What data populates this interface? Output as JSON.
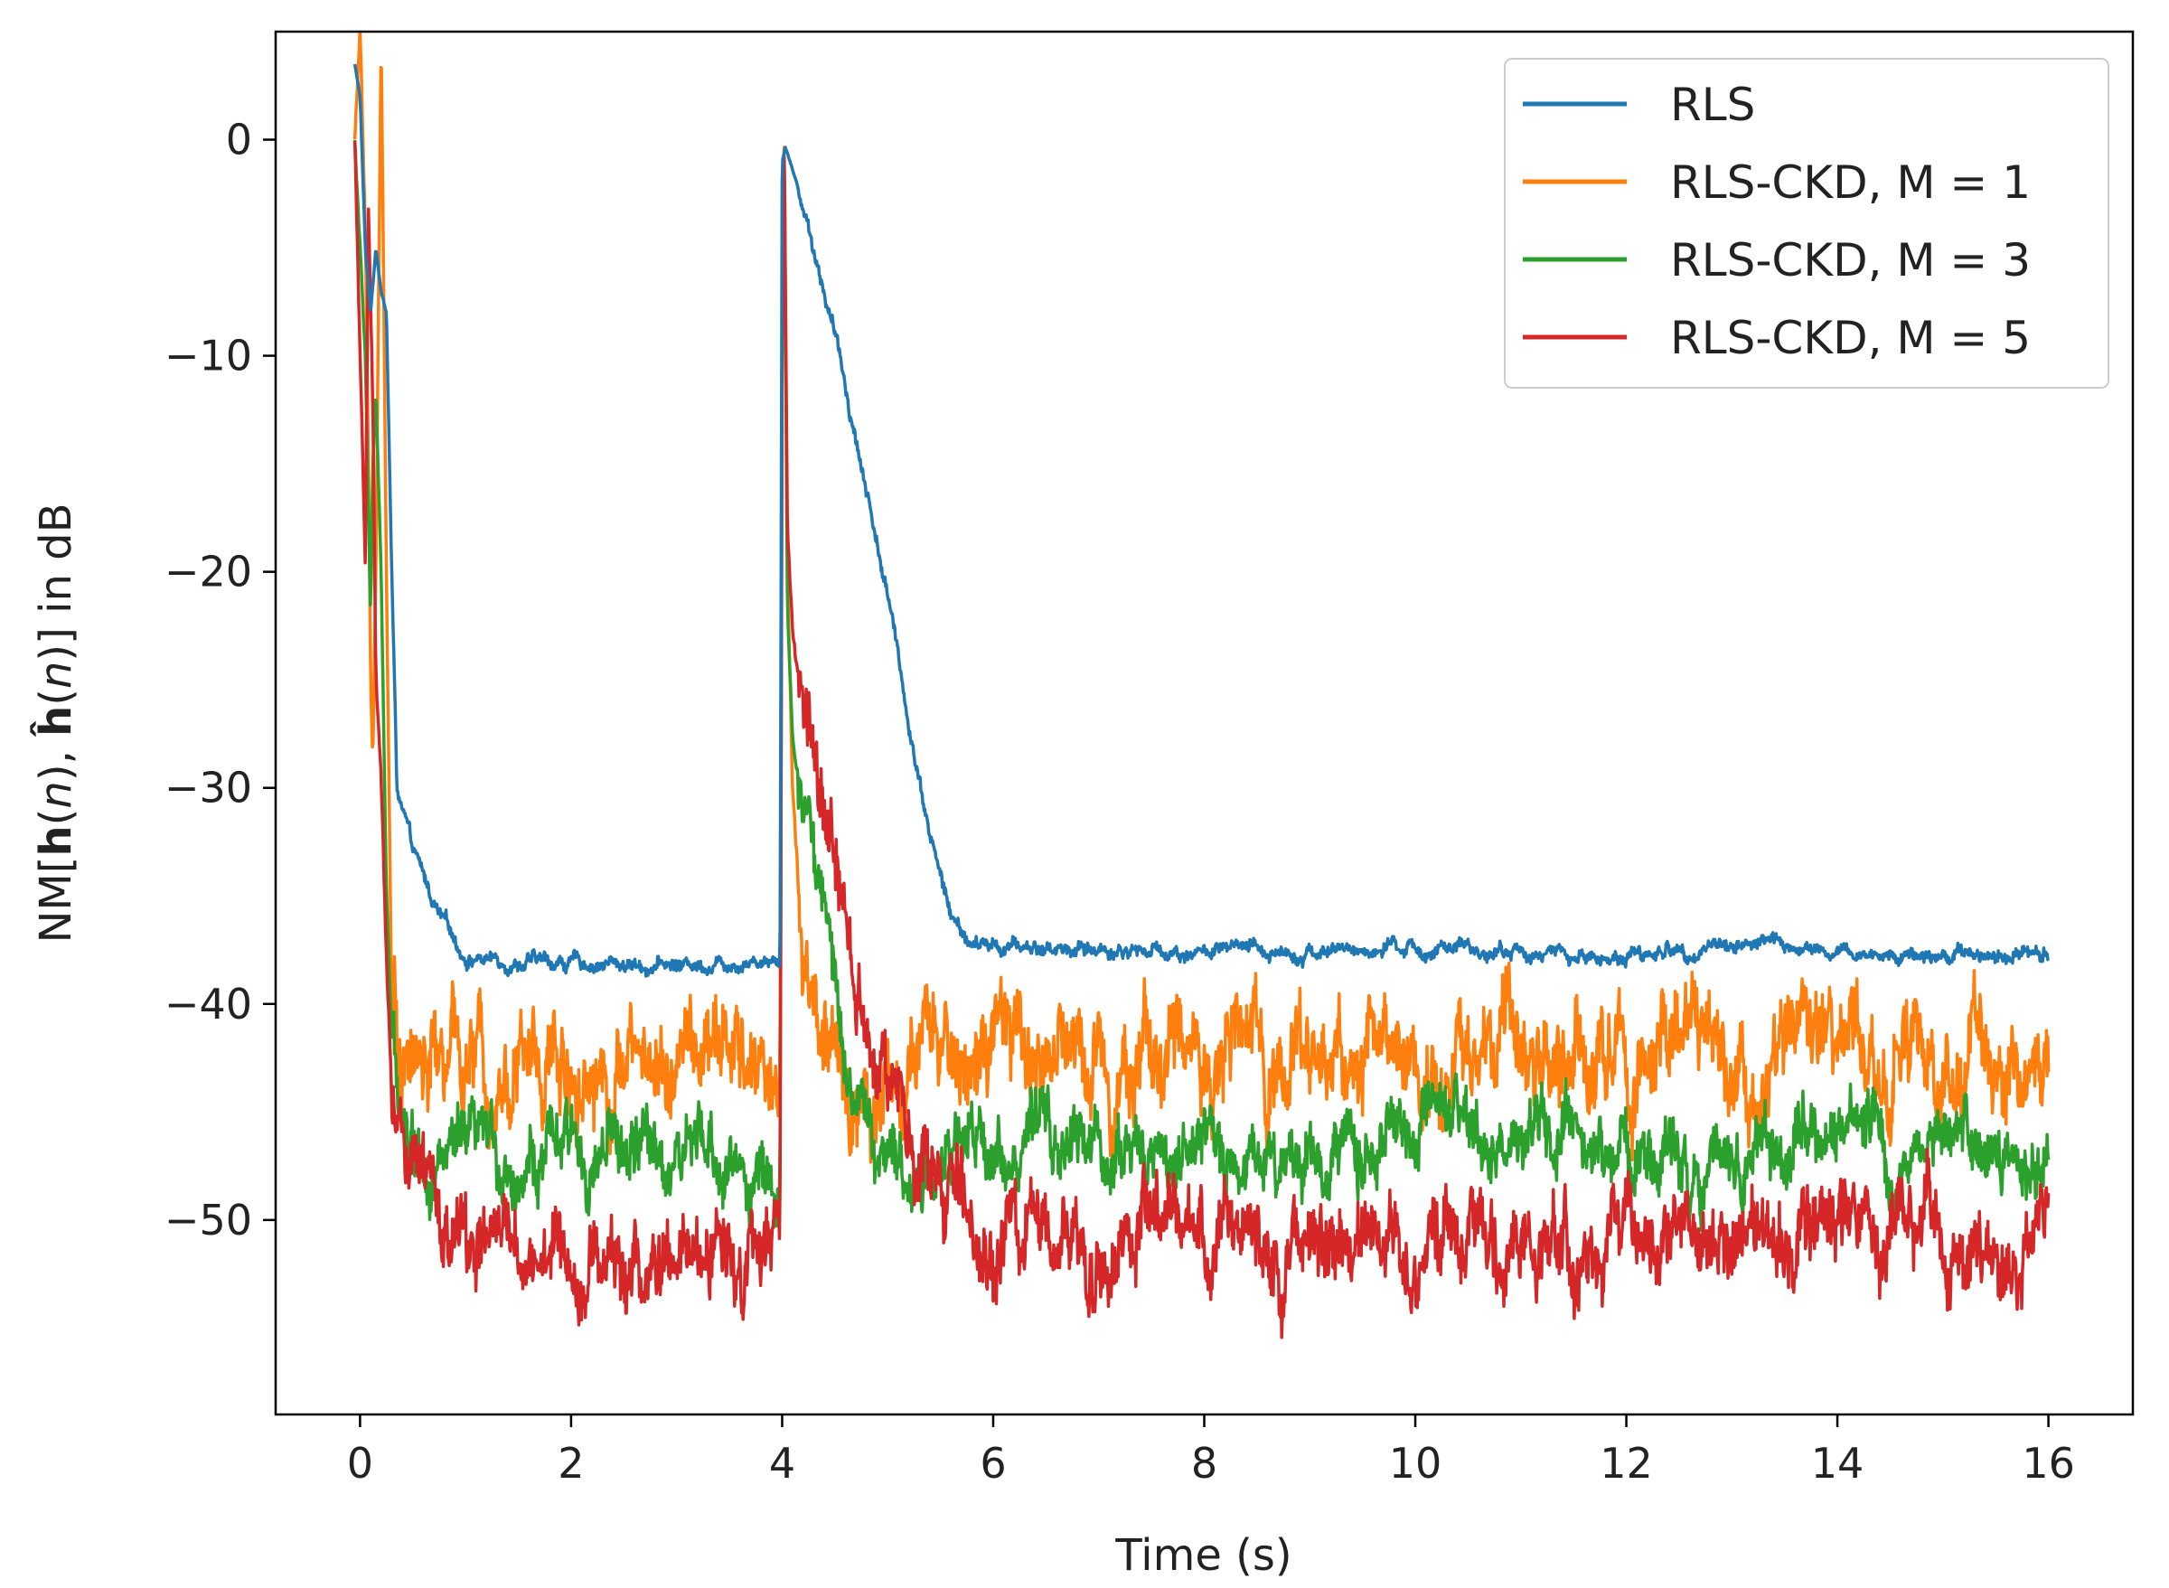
{
  "chart_data": {
    "type": "line",
    "title": "",
    "xlabel": "Time (s)",
    "ylabel": "NM[h(n), ĥ(n)] in dB",
    "xlim": [
      -0.8,
      16.8
    ],
    "ylim": [
      -59,
      5
    ],
    "xticks": [
      0,
      2,
      4,
      6,
      8,
      10,
      12,
      14,
      16
    ],
    "yticks": [
      0,
      -10,
      -20,
      -30,
      -40,
      -50
    ],
    "xtick_labels": [
      "0",
      "2",
      "4",
      "6",
      "8",
      "10",
      "12",
      "14",
      "16"
    ],
    "ytick_labels": [
      "0",
      "−10",
      "−20",
      "−30",
      "−40",
      "−50"
    ],
    "grid": false,
    "legend_position": "top-right",
    "series": [
      {
        "name": "RLS",
        "color": "#1f77b4",
        "noise": 0.35,
        "points": [
          [
            -0.05,
            3.5
          ],
          [
            0.0,
            2
          ],
          [
            0.05,
            -5
          ],
          [
            0.1,
            -8
          ],
          [
            0.15,
            -5
          ],
          [
            0.2,
            -7
          ],
          [
            0.25,
            -8
          ],
          [
            0.3,
            -20
          ],
          [
            0.35,
            -30
          ],
          [
            0.5,
            -33
          ],
          [
            0.75,
            -36
          ],
          [
            1.0,
            -37.8
          ],
          [
            1.5,
            -38
          ],
          [
            2.0,
            -38.1
          ],
          [
            3.0,
            -38.2
          ],
          [
            3.5,
            -38
          ],
          [
            3.98,
            -37.8
          ],
          [
            4.0,
            -1
          ],
          [
            4.03,
            -0.3
          ],
          [
            4.2,
            -3
          ],
          [
            4.5,
            -9
          ],
          [
            5.0,
            -21
          ],
          [
            5.2,
            -27
          ],
          [
            5.4,
            -32
          ],
          [
            5.6,
            -36
          ],
          [
            5.8,
            -37.3
          ],
          [
            6.2,
            -37.4
          ],
          [
            8.0,
            -37.6
          ],
          [
            10.0,
            -37.5
          ],
          [
            11.0,
            -37.6
          ],
          [
            11.7,
            -37.9
          ],
          [
            13.3,
            -37.1
          ],
          [
            14.0,
            -37.8
          ],
          [
            16.0,
            -37.5
          ]
        ]
      },
      {
        "name": "RLS-CKD, M = 1",
        "color": "#ff7f0e",
        "noise": 2.2,
        "points": [
          [
            -0.05,
            0
          ],
          [
            0.0,
            5
          ],
          [
            0.05,
            -4
          ],
          [
            0.08,
            -15
          ],
          [
            0.1,
            -25
          ],
          [
            0.12,
            -29
          ],
          [
            0.15,
            -20
          ],
          [
            0.2,
            5
          ],
          [
            0.25,
            -20
          ],
          [
            0.3,
            -40
          ],
          [
            0.4,
            -42
          ],
          [
            0.7,
            -43
          ],
          [
            1.5,
            -42.5
          ],
          [
            3.0,
            -42.5
          ],
          [
            3.98,
            -43
          ],
          [
            4.0,
            -5
          ],
          [
            4.02,
            0
          ],
          [
            4.05,
            -20
          ],
          [
            4.1,
            -30
          ],
          [
            4.2,
            -38
          ],
          [
            4.5,
            -44
          ],
          [
            4.8,
            -44
          ],
          [
            5.5,
            -42.5
          ],
          [
            8.0,
            -42
          ],
          [
            10.0,
            -42.5
          ],
          [
            12.0,
            -42.5
          ],
          [
            14.0,
            -42.5
          ],
          [
            16.0,
            -42.5
          ]
        ]
      },
      {
        "name": "RLS-CKD, M = 3",
        "color": "#2ca02c",
        "noise": 1.6,
        "points": [
          [
            -0.05,
            0
          ],
          [
            0.0,
            -5
          ],
          [
            0.05,
            -10
          ],
          [
            0.1,
            -22
          ],
          [
            0.12,
            -15
          ],
          [
            0.15,
            -12
          ],
          [
            0.2,
            -20
          ],
          [
            0.25,
            -35
          ],
          [
            0.3,
            -42
          ],
          [
            0.5,
            -46
          ],
          [
            1.0,
            -47.5
          ],
          [
            2.0,
            -47
          ],
          [
            3.0,
            -47
          ],
          [
            3.98,
            -48
          ],
          [
            4.0,
            -10
          ],
          [
            4.02,
            0
          ],
          [
            4.05,
            -22
          ],
          [
            4.1,
            -28
          ],
          [
            4.3,
            -33
          ],
          [
            4.6,
            -42
          ],
          [
            5.0,
            -48.5
          ],
          [
            5.5,
            -47
          ],
          [
            6.0,
            -46.5
          ],
          [
            8.0,
            -47
          ],
          [
            10.0,
            -46.5
          ],
          [
            12.0,
            -47
          ],
          [
            14.0,
            -46.5
          ],
          [
            16.0,
            -47
          ]
        ]
      },
      {
        "name": "RLS-CKD, M = 5",
        "color": "#d62728",
        "noise": 1.9,
        "points": [
          [
            -0.05,
            0
          ],
          [
            0.0,
            -10
          ],
          [
            0.05,
            -20
          ],
          [
            0.08,
            -3
          ],
          [
            0.12,
            -12
          ],
          [
            0.15,
            -25
          ],
          [
            0.2,
            -30
          ],
          [
            0.25,
            -38
          ],
          [
            0.3,
            -44
          ],
          [
            0.5,
            -48
          ],
          [
            0.8,
            -51
          ],
          [
            1.2,
            -51.5
          ],
          [
            2.0,
            -51.5
          ],
          [
            2.5,
            -52
          ],
          [
            3.0,
            -53
          ],
          [
            3.5,
            -51
          ],
          [
            3.98,
            -52
          ],
          [
            4.0,
            -10
          ],
          [
            4.02,
            0
          ],
          [
            4.05,
            -18
          ],
          [
            4.1,
            -23
          ],
          [
            4.3,
            -30
          ],
          [
            4.8,
            -40
          ],
          [
            5.2,
            -47
          ],
          [
            5.6,
            -49.5
          ],
          [
            6.0,
            -51
          ],
          [
            8.0,
            -51
          ],
          [
            10.0,
            -51
          ],
          [
            12.0,
            -51
          ],
          [
            14.0,
            -50.5
          ],
          [
            16.0,
            -51
          ]
        ]
      }
    ]
  }
}
